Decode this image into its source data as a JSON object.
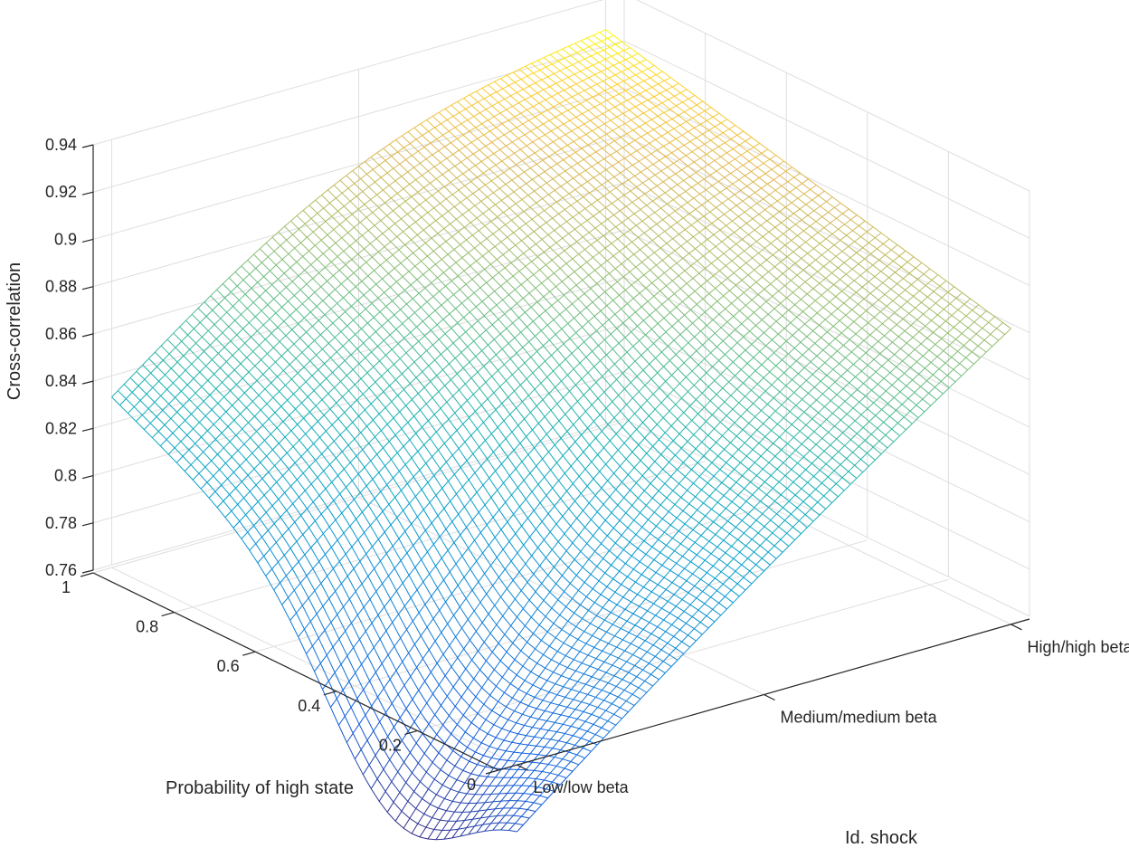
{
  "chart_data": {
    "type": "surface",
    "title": "",
    "xlabel": "Id. shock",
    "ylabel": "Probability of high state",
    "zlabel": "Cross-correlation",
    "x_categories": [
      "Low/low beta",
      "Medium/medium beta",
      "High/high beta"
    ],
    "x_range": [
      1,
      3
    ],
    "y_ticks": [
      0,
      0.2,
      0.4,
      0.6,
      0.8,
      1
    ],
    "y_tick_labels": [
      "0",
      "0.2",
      "0.4",
      "0.6",
      "0.8",
      "1"
    ],
    "y_range": [
      0,
      1
    ],
    "z_ticks": [
      0.76,
      0.78,
      0.8,
      0.82,
      0.84,
      0.86,
      0.88,
      0.9,
      0.92,
      0.94
    ],
    "z_tick_labels": [
      "0.76",
      "0.78",
      "0.8",
      "0.82",
      "0.84",
      "0.86",
      "0.88",
      "0.9",
      "0.92",
      "0.94"
    ],
    "z_range": [
      0.76,
      0.94
    ],
    "grid": true,
    "colormap": "parula",
    "corner_values": [
      {
        "x": "Low/low beta",
        "y": 1,
        "z": 0.831
      },
      {
        "x": "Low/low beta",
        "y": 0,
        "z": 0.744
      },
      {
        "x": "High/high beta",
        "y": 1,
        "z": 0.927
      },
      {
        "x": "High/high beta",
        "y": 0,
        "z": 0.884
      }
    ],
    "minimum": {
      "x": "Low/low beta",
      "y": 0.3,
      "z": 0.71
    }
  }
}
